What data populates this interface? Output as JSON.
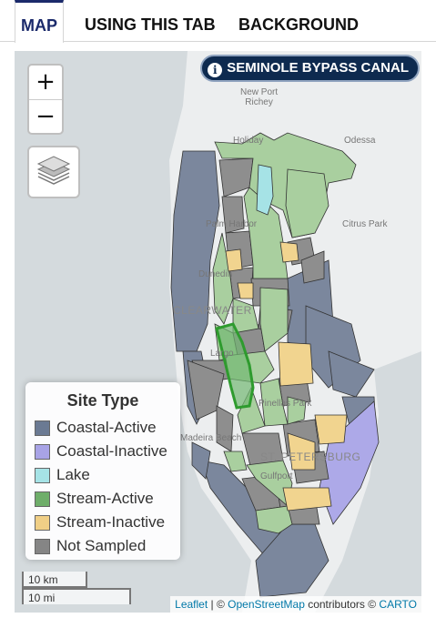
{
  "tabs": [
    {
      "label": "MAP",
      "active": true
    },
    {
      "label": "USING THIS TAB",
      "active": false
    },
    {
      "label": "BACKGROUND",
      "active": false
    }
  ],
  "map": {
    "zoom_in": "+",
    "zoom_out": "−",
    "badge": {
      "icon": "info-icon",
      "text": "SEMINOLE BYPASS CANAL"
    },
    "places": {
      "new_port_richey": "New Port\nRichey",
      "holiday": "Holiday",
      "odessa": "Odessa",
      "palm_harbor": "Palm Harbor",
      "citrus_park": "Citrus Park",
      "dunedin": "Dunedin",
      "clearwater": "CLEARWATER",
      "largo": "Largo",
      "pinellas_park": "Pinellas Park",
      "madeira_beach": "Madeira Beach",
      "st_petersburg": "ST. PETERSBURG",
      "gulfport": "Gulfport"
    },
    "legend": {
      "title": "Site Type",
      "items": [
        {
          "label": "Coastal-Active",
          "color": "#6b7a93"
        },
        {
          "label": "Coastal-Inactive",
          "color": "#a8a3e6"
        },
        {
          "label": "Lake",
          "color": "#a6e3e6"
        },
        {
          "label": "Stream-Active",
          "color": "#6fae6a"
        },
        {
          "label": "Stream-Inactive",
          "color": "#f0cf86"
        },
        {
          "label": "Not Sampled",
          "color": "#858585"
        }
      ]
    },
    "scale": {
      "metric": "10 km",
      "imperial": "10 mi"
    },
    "attribution": {
      "leaflet": "Leaflet",
      "sep1": " | © ",
      "osm": "OpenStreetMap",
      "contrib": " contributors © ",
      "carto": "CARTO"
    },
    "selected_color": "#2e9b2e"
  }
}
